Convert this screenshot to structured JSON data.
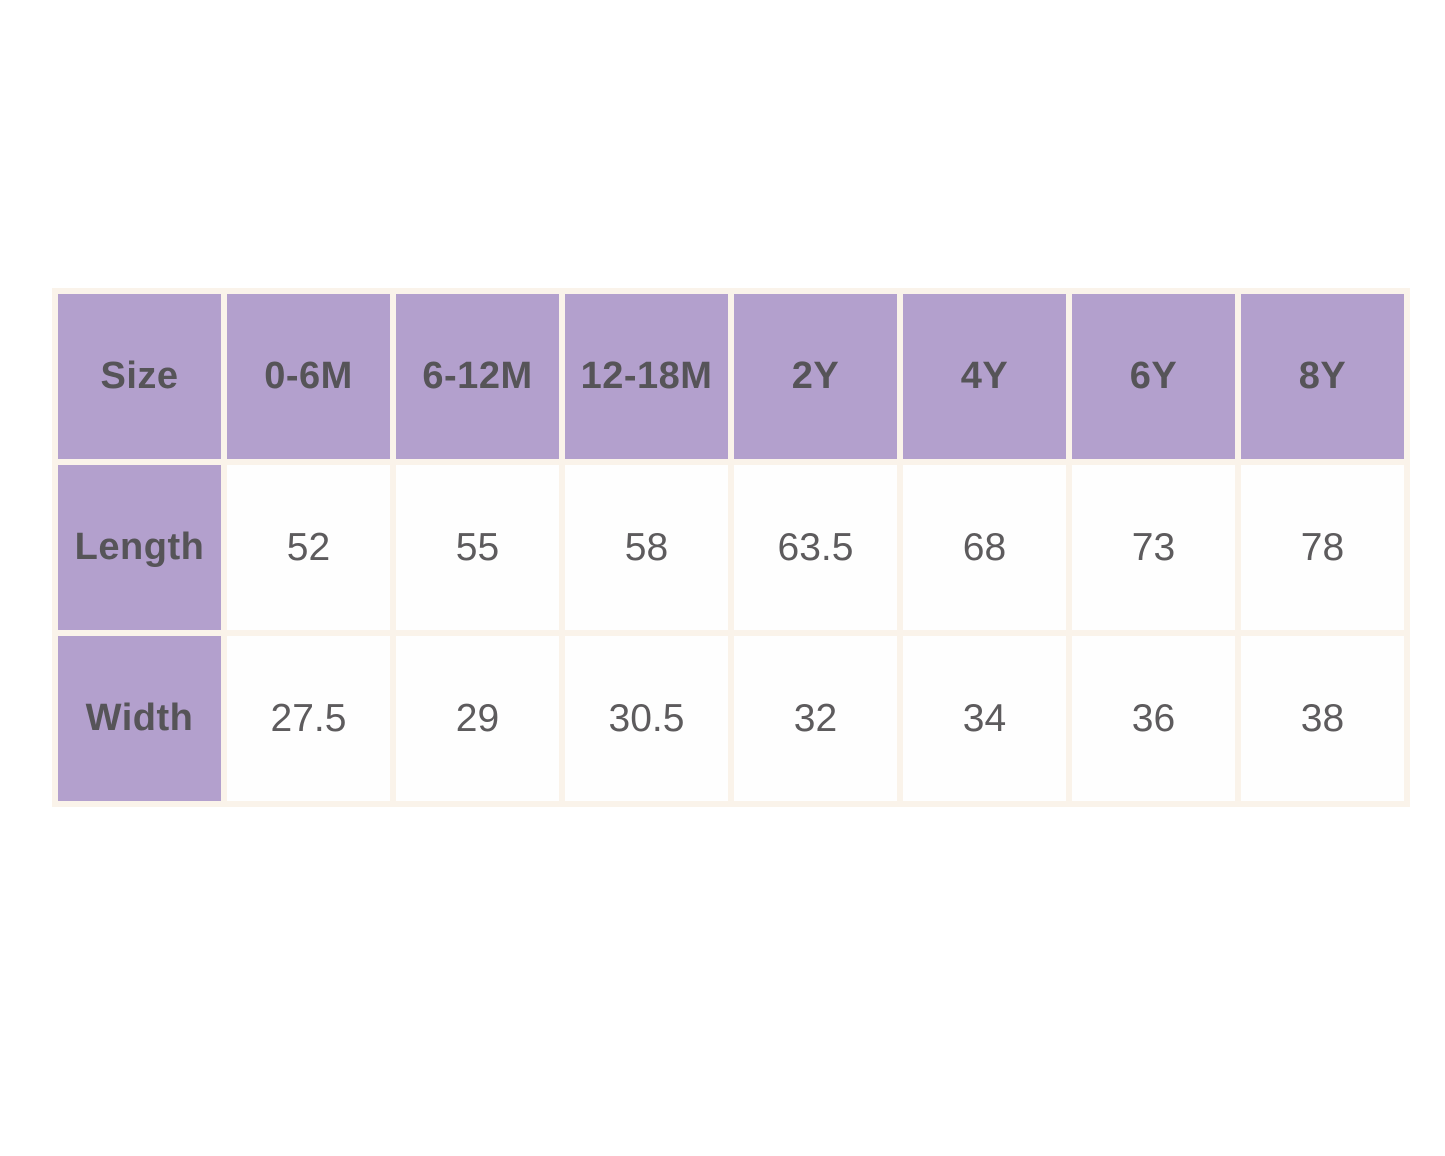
{
  "colors": {
    "page_background": "#ffffff",
    "header_cell_background": "#b3a0cd",
    "frame_and_gaps": "#faf3ea",
    "data_cell_background": "#fefefe",
    "header_text": "#565458",
    "data_text": "#5d5b5d"
  },
  "size_chart": {
    "columns": [
      "Size",
      "0-6M",
      "6-12M",
      "12-18M",
      "2Y",
      "4Y",
      "6Y",
      "8Y"
    ],
    "rows": [
      {
        "label": "Length",
        "values": [
          "52",
          "55",
          "58",
          "63.5",
          "68",
          "73",
          "78"
        ]
      },
      {
        "label": "Width",
        "values": [
          "27.5",
          "29",
          "30.5",
          "32",
          "34",
          "36",
          "38"
        ]
      }
    ]
  },
  "chart_data": {
    "type": "table",
    "title": "",
    "columns": [
      "Size",
      "0-6M",
      "6-12M",
      "12-18M",
      "2Y",
      "4Y",
      "6Y",
      "8Y"
    ],
    "rows": [
      [
        "Length",
        52,
        55,
        58,
        63.5,
        68,
        73,
        78
      ],
      [
        "Width",
        27.5,
        29,
        30.5,
        32,
        34,
        36,
        38
      ]
    ]
  }
}
